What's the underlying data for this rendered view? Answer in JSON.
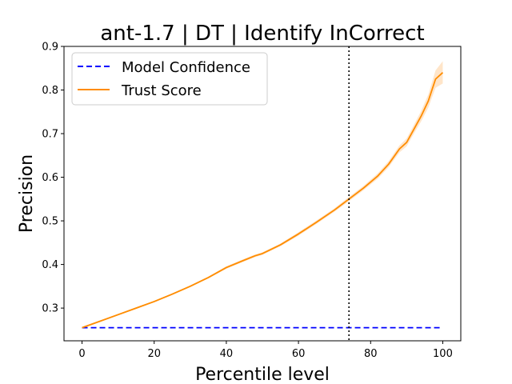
{
  "chart_data": {
    "type": "line",
    "title": "ant-1.7 | DT | Identify InCorrect",
    "xlabel": "Percentile level",
    "ylabel": "Precision",
    "xlim": [
      -5,
      105
    ],
    "ylim": [
      0.225,
      0.9
    ],
    "xticks": [
      0,
      20,
      40,
      60,
      80,
      100
    ],
    "xtick_labels": [
      "0",
      "20",
      "40",
      "60",
      "80",
      "100"
    ],
    "yticks": [
      0.3,
      0.4,
      0.5,
      0.6,
      0.7,
      0.8,
      0.9
    ],
    "ytick_labels": [
      "0.3",
      "0.4",
      "0.5",
      "0.6",
      "0.7",
      "0.8",
      "0.9"
    ],
    "grid": false,
    "legend_position": "top-left",
    "vertical_reference_line": {
      "x": 74,
      "style": "dotted",
      "color": "#000000"
    },
    "series": [
      {
        "name": "Model Confidence",
        "color": "#0000ff",
        "style": "dashed",
        "x": [
          0,
          100
        ],
        "y": [
          0.255,
          0.255
        ]
      },
      {
        "name": "Trust Score",
        "color": "#ff8c00",
        "band_color": "#ffe0c0",
        "style": "solid",
        "x": [
          0,
          5,
          10,
          15,
          20,
          25,
          30,
          35,
          40,
          45,
          48,
          50,
          55,
          60,
          65,
          70,
          74,
          78,
          82,
          85,
          88,
          90,
          92,
          94,
          96,
          98,
          100
        ],
        "y": [
          0.255,
          0.27,
          0.285,
          0.3,
          0.315,
          0.332,
          0.35,
          0.37,
          0.393,
          0.41,
          0.42,
          0.425,
          0.445,
          0.47,
          0.497,
          0.525,
          0.55,
          0.575,
          0.603,
          0.63,
          0.665,
          0.68,
          0.71,
          0.74,
          0.775,
          0.825,
          0.84
        ],
        "y_lower": [
          0.253,
          0.268,
          0.283,
          0.298,
          0.313,
          0.33,
          0.348,
          0.368,
          0.39,
          0.407,
          0.417,
          0.422,
          0.442,
          0.466,
          0.493,
          0.521,
          0.545,
          0.57,
          0.597,
          0.623,
          0.657,
          0.671,
          0.7,
          0.728,
          0.76,
          0.805,
          0.815
        ],
        "y_upper": [
          0.257,
          0.272,
          0.287,
          0.302,
          0.317,
          0.334,
          0.352,
          0.372,
          0.396,
          0.413,
          0.423,
          0.428,
          0.448,
          0.474,
          0.501,
          0.529,
          0.555,
          0.58,
          0.609,
          0.637,
          0.673,
          0.689,
          0.72,
          0.752,
          0.79,
          0.845,
          0.866
        ]
      }
    ]
  }
}
